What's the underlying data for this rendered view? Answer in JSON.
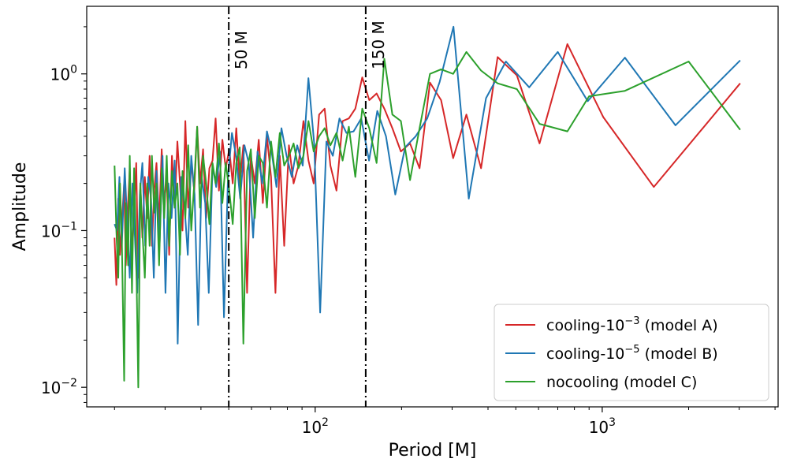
{
  "chart_data": {
    "type": "line",
    "xlabel": "Period [M]",
    "ylabel": "Amplitude",
    "xscale": "log",
    "yscale": "log",
    "xlim": [
      16,
      4100
    ],
    "ylim": [
      0.0075,
      2.7
    ],
    "xticks": [
      {
        "value": 100,
        "base": "10",
        "exp": "2"
      },
      {
        "value": 1000,
        "base": "10",
        "exp": "3"
      }
    ],
    "yticks": [
      {
        "value": 0.01,
        "base": "10",
        "exp": "−2"
      },
      {
        "value": 0.1,
        "base": "10",
        "exp": "−1"
      },
      {
        "value": 1,
        "base": "10",
        "exp": "0"
      }
    ],
    "grid": false,
    "vlines": [
      {
        "x": 50,
        "label": "50 M",
        "color": "#000000"
      },
      {
        "x": 150,
        "label": "150 M",
        "color": "#000000"
      }
    ],
    "legend": {
      "position": "lower right",
      "entries": [
        {
          "prefix": "cooling-10",
          "sup": "−3",
          "suffix": " (model A)",
          "color": "#d62728"
        },
        {
          "prefix": "cooling-10",
          "sup": "−5",
          "suffix": " (model B)",
          "color": "#1f77b4"
        },
        {
          "prefix": "nocooling (model C)",
          "sup": "",
          "suffix": "",
          "color": "#2ca02c"
        }
      ]
    },
    "series": [
      {
        "name": "cooling-10^-3 (model A)",
        "color": "#d62728",
        "points": [
          [
            20.0,
            0.09
          ],
          [
            20.3,
            0.045
          ],
          [
            20.6,
            0.16
          ],
          [
            20.9,
            0.07
          ],
          [
            21.2,
            0.11
          ],
          [
            21.6,
            0.2
          ],
          [
            21.9,
            0.06
          ],
          [
            22.3,
            0.15
          ],
          [
            22.6,
            0.25
          ],
          [
            23.0,
            0.07
          ],
          [
            23.4,
            0.13
          ],
          [
            23.8,
            0.27
          ],
          [
            24.2,
            0.05
          ],
          [
            24.6,
            0.2
          ],
          [
            25.0,
            0.09
          ],
          [
            25.5,
            0.22
          ],
          [
            26.0,
            0.12
          ],
          [
            26.5,
            0.3
          ],
          [
            27.0,
            0.08
          ],
          [
            27.5,
            0.18
          ],
          [
            28.0,
            0.27
          ],
          [
            28.6,
            0.11
          ],
          [
            29.2,
            0.33
          ],
          [
            29.8,
            0.15
          ],
          [
            30.4,
            0.22
          ],
          [
            31.0,
            0.07
          ],
          [
            31.7,
            0.3
          ],
          [
            32.4,
            0.14
          ],
          [
            33.1,
            0.37
          ],
          [
            33.8,
            0.2
          ],
          [
            34.5,
            0.1
          ],
          [
            35.3,
            0.5
          ],
          [
            36.1,
            0.14
          ],
          [
            37.0,
            0.27
          ],
          [
            37.9,
            0.18
          ],
          [
            38.8,
            0.46
          ],
          [
            39.7,
            0.2
          ],
          [
            40.7,
            0.33
          ],
          [
            41.7,
            0.12
          ],
          [
            42.8,
            0.25
          ],
          [
            43.9,
            0.28
          ],
          [
            45.0,
            0.52
          ],
          [
            46.2,
            0.18
          ],
          [
            47.5,
            0.38
          ],
          [
            48.8,
            0.25
          ],
          [
            50.2,
            0.33
          ],
          [
            51.6,
            0.2
          ],
          [
            53.1,
            0.45
          ],
          [
            54.6,
            0.2
          ],
          [
            56.2,
            0.35
          ],
          [
            57.9,
            0.04
          ],
          [
            59.7,
            0.3
          ],
          [
            61.6,
            0.2
          ],
          [
            63.6,
            0.38
          ],
          [
            65.7,
            0.15
          ],
          [
            67.9,
            0.4
          ],
          [
            70.2,
            0.22
          ],
          [
            72.7,
            0.04
          ],
          [
            75.3,
            0.3
          ],
          [
            78.0,
            0.08
          ],
          [
            81.0,
            0.35
          ],
          [
            84.1,
            0.2
          ],
          [
            87.4,
            0.26
          ],
          [
            91.0,
            0.5
          ],
          [
            94.8,
            0.28
          ],
          [
            98.8,
            0.2
          ],
          [
            103.2,
            0.55
          ],
          [
            107.9,
            0.6
          ],
          [
            113.0,
            0.26
          ],
          [
            118.6,
            0.18
          ],
          [
            124.6,
            0.5
          ],
          [
            131.0,
            0.52
          ],
          [
            138.0,
            0.6
          ],
          [
            145.9,
            0.95
          ],
          [
            154.3,
            0.68
          ],
          [
            163.7,
            0.75
          ],
          [
            174.1,
            0.6
          ],
          [
            185.8,
            0.45
          ],
          [
            198.9,
            0.32
          ],
          [
            214.0,
            0.36
          ],
          [
            231.1,
            0.25
          ],
          [
            251.1,
            0.88
          ],
          [
            274.6,
            0.68
          ],
          [
            302.5,
            0.29
          ],
          [
            336.3,
            0.55
          ],
          [
            378.3,
            0.25
          ],
          [
            432.2,
            1.28
          ],
          [
            504.2,
            0.98
          ],
          [
            605.0,
            0.36
          ],
          [
            756.2,
            1.55
          ],
          [
            1008.3,
            0.53
          ],
          [
            1512.5,
            0.19
          ],
          [
            3025.0,
            0.87
          ]
        ]
      },
      {
        "name": "cooling-10^-5 (model B)",
        "color": "#1f77b4",
        "points": [
          [
            20.0,
            0.11
          ],
          [
            20.4,
            0.1
          ],
          [
            20.8,
            0.22
          ],
          [
            21.2,
            0.08
          ],
          [
            21.7,
            0.25
          ],
          [
            22.1,
            0.12
          ],
          [
            22.6,
            0.05
          ],
          [
            23.1,
            0.2
          ],
          [
            23.5,
            0.1
          ],
          [
            24.0,
            0.04
          ],
          [
            24.5,
            0.17
          ],
          [
            25.0,
            0.27
          ],
          [
            25.6,
            0.08
          ],
          [
            26.2,
            0.22
          ],
          [
            26.8,
            0.16
          ],
          [
            27.4,
            0.05
          ],
          [
            28.0,
            0.24
          ],
          [
            28.7,
            0.08
          ],
          [
            29.4,
            0.3
          ],
          [
            30.1,
            0.04
          ],
          [
            30.8,
            0.2
          ],
          [
            31.6,
            0.12
          ],
          [
            32.4,
            0.28
          ],
          [
            33.2,
            0.019
          ],
          [
            34.1,
            0.22
          ],
          [
            35.0,
            0.15
          ],
          [
            36.0,
            0.07
          ],
          [
            37.0,
            0.3
          ],
          [
            38.0,
            0.17
          ],
          [
            39.1,
            0.025
          ],
          [
            40.2,
            0.22
          ],
          [
            41.4,
            0.15
          ],
          [
            42.6,
            0.04
          ],
          [
            43.9,
            0.26
          ],
          [
            45.2,
            0.19
          ],
          [
            46.6,
            0.32
          ],
          [
            48.1,
            0.028
          ],
          [
            49.7,
            0.22
          ],
          [
            51.3,
            0.42
          ],
          [
            53.0,
            0.3
          ],
          [
            54.8,
            0.16
          ],
          [
            56.7,
            0.35
          ],
          [
            58.7,
            0.27
          ],
          [
            60.8,
            0.09
          ],
          [
            63.0,
            0.32
          ],
          [
            65.4,
            0.2
          ],
          [
            67.9,
            0.43
          ],
          [
            70.5,
            0.32
          ],
          [
            73.3,
            0.19
          ],
          [
            76.3,
            0.45
          ],
          [
            79.5,
            0.3
          ],
          [
            82.9,
            0.22
          ],
          [
            86.6,
            0.35
          ],
          [
            90.5,
            0.26
          ],
          [
            94.7,
            0.94
          ],
          [
            99.2,
            0.36
          ],
          [
            104.1,
            0.03
          ],
          [
            109.4,
            0.37
          ],
          [
            115.2,
            0.3
          ],
          [
            121.5,
            0.52
          ],
          [
            128.5,
            0.42
          ],
          [
            136.1,
            0.43
          ],
          [
            144.7,
            0.52
          ],
          [
            154.0,
            0.28
          ],
          [
            164.6,
            0.58
          ],
          [
            176.5,
            0.4
          ],
          [
            190.1,
            0.17
          ],
          [
            205.8,
            0.34
          ],
          [
            224.0,
            0.4
          ],
          [
            245.6,
            0.52
          ],
          [
            271.5,
            0.89
          ],
          [
            303.2,
            2.0
          ],
          [
            342.8,
            0.16
          ],
          [
            393.8,
            0.7
          ],
          [
            461.8,
            1.2
          ],
          [
            557.0,
            0.82
          ],
          [
            700.0,
            1.38
          ],
          [
            890.0,
            0.67
          ],
          [
            1200.0,
            1.27
          ],
          [
            1800.0,
            0.47
          ],
          [
            3025.0,
            1.22
          ]
        ]
      },
      {
        "name": "nocooling (model C)",
        "color": "#2ca02c",
        "points": [
          [
            20.0,
            0.26
          ],
          [
            20.3,
            0.1
          ],
          [
            20.6,
            0.05
          ],
          [
            20.9,
            0.2
          ],
          [
            21.2,
            0.09
          ],
          [
            21.6,
            0.011
          ],
          [
            21.9,
            0.15
          ],
          [
            22.3,
            0.06
          ],
          [
            22.6,
            0.3
          ],
          [
            23.0,
            0.04
          ],
          [
            23.4,
            0.25
          ],
          [
            23.8,
            0.07
          ],
          [
            24.2,
            0.01
          ],
          [
            24.6,
            0.2
          ],
          [
            25.0,
            0.1
          ],
          [
            25.5,
            0.05
          ],
          [
            26.0,
            0.2
          ],
          [
            26.5,
            0.08
          ],
          [
            27.0,
            0.3
          ],
          [
            27.5,
            0.13
          ],
          [
            28.0,
            0.2
          ],
          [
            28.6,
            0.06
          ],
          [
            29.2,
            0.25
          ],
          [
            29.8,
            0.12
          ],
          [
            30.4,
            0.3
          ],
          [
            31.0,
            0.08
          ],
          [
            31.7,
            0.24
          ],
          [
            32.4,
            0.14
          ],
          [
            33.1,
            0.2
          ],
          [
            33.8,
            0.07
          ],
          [
            34.5,
            0.24
          ],
          [
            35.3,
            0.12
          ],
          [
            36.1,
            0.35
          ],
          [
            37.0,
            0.1
          ],
          [
            37.9,
            0.2
          ],
          [
            38.8,
            0.46
          ],
          [
            39.7,
            0.14
          ],
          [
            40.7,
            0.3
          ],
          [
            41.7,
            0.2
          ],
          [
            42.8,
            0.11
          ],
          [
            43.9,
            0.27
          ],
          [
            45.0,
            0.2
          ],
          [
            46.2,
            0.36
          ],
          [
            47.5,
            0.15
          ],
          [
            48.8,
            0.27
          ],
          [
            50.2,
            0.18
          ],
          [
            51.6,
            0.11
          ],
          [
            53.1,
            0.27
          ],
          [
            54.6,
            0.34
          ],
          [
            56.2,
            0.019
          ],
          [
            57.9,
            0.24
          ],
          [
            59.7,
            0.33
          ],
          [
            61.6,
            0.12
          ],
          [
            63.6,
            0.3
          ],
          [
            65.7,
            0.27
          ],
          [
            67.9,
            0.14
          ],
          [
            70.2,
            0.37
          ],
          [
            72.7,
            0.22
          ],
          [
            75.3,
            0.42
          ],
          [
            78.0,
            0.26
          ],
          [
            81.0,
            0.3
          ],
          [
            84.1,
            0.36
          ],
          [
            87.4,
            0.25
          ],
          [
            91.0,
            0.3
          ],
          [
            94.8,
            0.5
          ],
          [
            98.8,
            0.32
          ],
          [
            103.2,
            0.4
          ],
          [
            107.9,
            0.45
          ],
          [
            113.0,
            0.35
          ],
          [
            118.6,
            0.42
          ],
          [
            124.6,
            0.28
          ],
          [
            131.0,
            0.46
          ],
          [
            138.0,
            0.22
          ],
          [
            145.9,
            0.6
          ],
          [
            154.3,
            0.45
          ],
          [
            163.7,
            0.27
          ],
          [
            174.1,
            1.25
          ],
          [
            185.8,
            0.55
          ],
          [
            198.9,
            0.5
          ],
          [
            214.0,
            0.21
          ],
          [
            231.1,
            0.45
          ],
          [
            251.1,
            1.0
          ],
          [
            274.6,
            1.07
          ],
          [
            302.5,
            1.0
          ],
          [
            336.3,
            1.38
          ],
          [
            378.3,
            1.05
          ],
          [
            432.2,
            0.87
          ],
          [
            504.2,
            0.8
          ],
          [
            605.0,
            0.48
          ],
          [
            756.2,
            0.43
          ],
          [
            900.0,
            0.72
          ],
          [
            1200.0,
            0.78
          ],
          [
            2000.0,
            1.2
          ],
          [
            3025.0,
            0.44
          ]
        ]
      }
    ]
  }
}
